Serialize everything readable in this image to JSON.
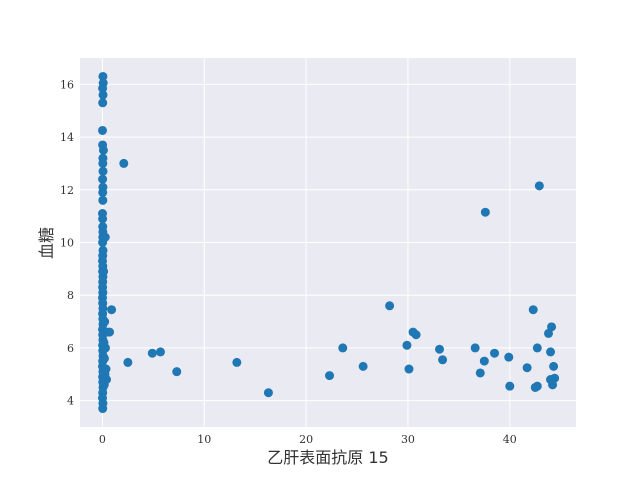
{
  "chart_data": {
    "type": "scatter",
    "xlabel": "乙肝表面抗原 15",
    "ylabel": "血糖",
    "xlim": [
      -2.2,
      46.5
    ],
    "ylim": [
      3.0,
      17.0
    ],
    "xticks": [
      0,
      10,
      20,
      30,
      40
    ],
    "yticks": [
      4,
      6,
      8,
      10,
      12,
      14,
      16
    ],
    "grid": true,
    "colors": {
      "background": "#EAEAF2",
      "grid": "#FFFFFF",
      "point": "#1F77B4"
    },
    "series": [
      {
        "points": [
          [
            0.05,
            16.3
          ],
          [
            0.08,
            16.05
          ],
          [
            0.02,
            15.85
          ],
          [
            0.06,
            15.6
          ],
          [
            0.03,
            15.3
          ],
          [
            0.01,
            14.25
          ],
          [
            0.02,
            13.7
          ],
          [
            0.1,
            13.5
          ],
          [
            0.05,
            13.2
          ],
          [
            0.04,
            13.0
          ],
          [
            0.06,
            12.7
          ],
          [
            0.02,
            12.4
          ],
          [
            0.05,
            12.1
          ],
          [
            0.03,
            11.9
          ],
          [
            0.04,
            11.6
          ],
          [
            0.01,
            11.1
          ],
          [
            0.02,
            10.9
          ],
          [
            0.03,
            10.6
          ],
          [
            0.05,
            10.4
          ],
          [
            0.04,
            10.2
          ],
          [
            0.02,
            10.0
          ],
          [
            0.06,
            9.7
          ],
          [
            0.03,
            9.5
          ],
          [
            0.01,
            9.3
          ],
          [
            0.04,
            9.1
          ],
          [
            0.02,
            8.9
          ],
          [
            0.05,
            8.7
          ],
          [
            0.03,
            8.5
          ],
          [
            0.02,
            8.3
          ],
          [
            0.04,
            8.1
          ],
          [
            0.01,
            7.9
          ],
          [
            0.03,
            7.7
          ],
          [
            0.05,
            7.5
          ],
          [
            0.02,
            7.3
          ],
          [
            0.04,
            7.1
          ],
          [
            0.06,
            6.9
          ],
          [
            0.01,
            6.7
          ],
          [
            0.03,
            6.5
          ],
          [
            0.05,
            6.3
          ],
          [
            0.02,
            6.1
          ],
          [
            0.04,
            5.9
          ],
          [
            0.06,
            5.7
          ],
          [
            0.03,
            5.5
          ],
          [
            0.01,
            5.3
          ],
          [
            0.05,
            5.1
          ],
          [
            0.02,
            4.9
          ],
          [
            0.04,
            4.7
          ],
          [
            0.06,
            4.5
          ],
          [
            0.03,
            4.3
          ],
          [
            0.01,
            4.1
          ],
          [
            0.05,
            3.9
          ],
          [
            0.03,
            3.7
          ],
          [
            0.15,
            6.2
          ],
          [
            0.2,
            5.6
          ],
          [
            0.25,
            5.0
          ],
          [
            0.18,
            4.6
          ],
          [
            0.22,
            7.0
          ],
          [
            0.3,
            6.0
          ],
          [
            0.12,
            8.9
          ],
          [
            0.28,
            10.2
          ],
          [
            0.35,
            5.2
          ],
          [
            0.4,
            4.8
          ],
          [
            0.45,
            6.6
          ],
          [
            0.9,
            7.45
          ],
          [
            0.7,
            6.6
          ],
          [
            2.1,
            13.0
          ],
          [
            2.5,
            5.45
          ],
          [
            4.9,
            5.8
          ],
          [
            5.7,
            5.85
          ],
          [
            7.3,
            5.1
          ],
          [
            13.2,
            5.45
          ],
          [
            16.3,
            4.3
          ],
          [
            22.3,
            4.95
          ],
          [
            23.6,
            6.0
          ],
          [
            25.6,
            5.3
          ],
          [
            28.2,
            7.6
          ],
          [
            29.9,
            6.1
          ],
          [
            30.1,
            5.2
          ],
          [
            30.5,
            6.6
          ],
          [
            30.8,
            6.5
          ],
          [
            33.1,
            5.95
          ],
          [
            33.4,
            5.55
          ],
          [
            36.6,
            6.0
          ],
          [
            37.1,
            5.05
          ],
          [
            37.5,
            5.5
          ],
          [
            37.6,
            11.15
          ],
          [
            38.5,
            5.8
          ],
          [
            39.9,
            5.65
          ],
          [
            40.0,
            4.55
          ],
          [
            41.7,
            5.25
          ],
          [
            42.3,
            7.45
          ],
          [
            42.5,
            4.5
          ],
          [
            42.7,
            4.55
          ],
          [
            42.7,
            6.0
          ],
          [
            42.9,
            12.15
          ],
          [
            43.8,
            6.55
          ],
          [
            44.0,
            5.85
          ],
          [
            44.1,
            6.8
          ],
          [
            44.0,
            4.8
          ],
          [
            44.2,
            4.6
          ],
          [
            44.3,
            5.3
          ],
          [
            44.4,
            4.85
          ]
        ]
      }
    ]
  }
}
